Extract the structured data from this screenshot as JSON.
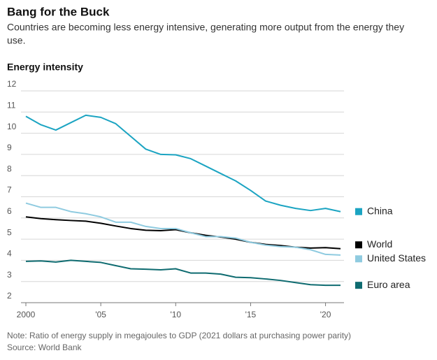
{
  "chart_data": {
    "type": "line",
    "title": "Bang for the Buck",
    "subtitle": [
      "Countries are becoming less energy intensive, generating more output from the energy they",
      "use."
    ],
    "y_label": "Energy intensity",
    "note": "Note: Ratio of energy supply in megajoules to GDP (2021 dollars at purchasing power parity)",
    "source": "Source: World Bank",
    "x": [
      2000,
      2001,
      2002,
      2003,
      2004,
      2005,
      2006,
      2007,
      2008,
      2009,
      2010,
      2011,
      2012,
      2013,
      2014,
      2015,
      2016,
      2017,
      2018,
      2019,
      2020,
      2021
    ],
    "xlim": [
      2000,
      2021
    ],
    "xticks": [
      2000,
      {
        "value": 2005,
        "label": "'05"
      },
      {
        "value": 2010,
        "label": "'10"
      },
      {
        "value": 2015,
        "label": "'15"
      },
      {
        "value": 2020,
        "label": "'20"
      }
    ],
    "ylim": [
      2,
      12
    ],
    "yticks": [
      2,
      3,
      4,
      5,
      6,
      7,
      8,
      9,
      10,
      11,
      12
    ],
    "grid": true,
    "legend": "right",
    "series": [
      {
        "name": "China",
        "color": "#1ba4c2",
        "values": [
          10.8,
          10.4,
          10.15,
          10.5,
          10.85,
          10.75,
          10.45,
          9.85,
          9.25,
          9.0,
          8.98,
          8.8,
          8.45,
          8.1,
          7.75,
          7.3,
          6.8,
          6.6,
          6.45,
          6.35,
          6.45,
          6.3
        ]
      },
      {
        "name": "World",
        "color": "#000000",
        "values": [
          6.05,
          5.97,
          5.92,
          5.88,
          5.85,
          5.75,
          5.62,
          5.5,
          5.42,
          5.4,
          5.45,
          5.3,
          5.18,
          5.1,
          5.0,
          4.85,
          4.75,
          4.7,
          4.62,
          4.58,
          4.6,
          4.55
        ]
      },
      {
        "name": "United States",
        "color": "#8fcbe0",
        "values": [
          6.7,
          6.5,
          6.5,
          6.3,
          6.2,
          6.05,
          5.8,
          5.8,
          5.6,
          5.5,
          5.5,
          5.3,
          5.12,
          5.12,
          5.05,
          4.85,
          4.72,
          4.65,
          4.62,
          4.5,
          4.28,
          4.25
        ]
      },
      {
        "name": "Euro area",
        "color": "#0e6b70",
        "values": [
          3.95,
          3.97,
          3.92,
          4.0,
          3.95,
          3.9,
          3.75,
          3.6,
          3.58,
          3.55,
          3.6,
          3.4,
          3.4,
          3.35,
          3.2,
          3.18,
          3.12,
          3.05,
          2.95,
          2.85,
          2.82,
          2.82
        ]
      }
    ]
  }
}
